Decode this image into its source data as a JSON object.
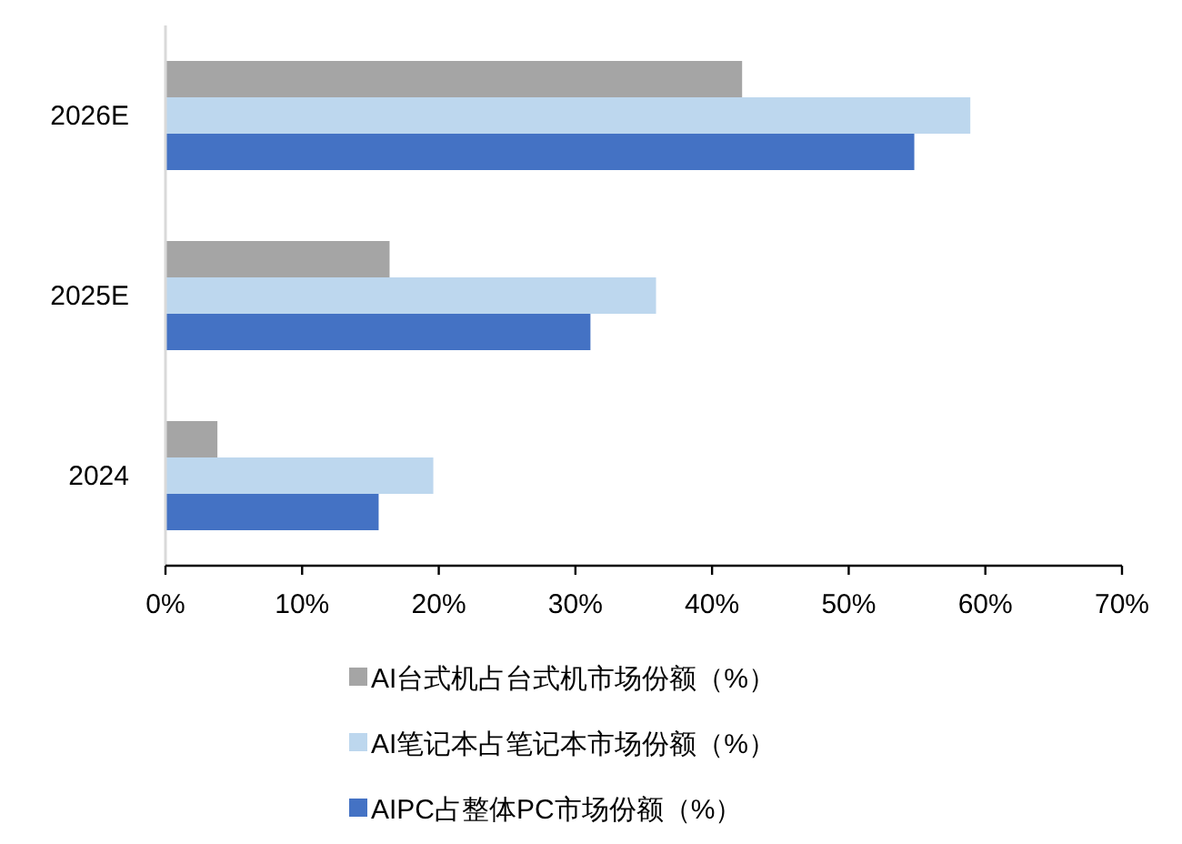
{
  "chart_data": {
    "type": "bar",
    "orientation": "horizontal",
    "categories": [
      "2026E",
      "2025E",
      "2024"
    ],
    "series": [
      {
        "name": "AI台式机占台式机市场份额（%）",
        "color": "#a5a5a5",
        "values": [
          42.2,
          16.4,
          3.8
        ]
      },
      {
        "name": "AI笔记本占笔记本市场份额（%）",
        "color": "#bdd7ee",
        "values": [
          58.9,
          35.9,
          19.6
        ]
      },
      {
        "name": "AIPC占整体PC市场份额（%）",
        "color": "#4472c4",
        "values": [
          54.8,
          31.1,
          15.6
        ]
      }
    ],
    "xlim": [
      0,
      70
    ],
    "xticks": [
      {
        "value": 0,
        "label": "0%"
      },
      {
        "value": 10,
        "label": "10%"
      },
      {
        "value": 20,
        "label": "20%"
      },
      {
        "value": 30,
        "label": "30%"
      },
      {
        "value": 40,
        "label": "40%"
      },
      {
        "value": 50,
        "label": "50%"
      },
      {
        "value": 60,
        "label": "60%"
      },
      {
        "value": 70,
        "label": "70%"
      }
    ],
    "grid": false,
    "legend": "bottom"
  }
}
